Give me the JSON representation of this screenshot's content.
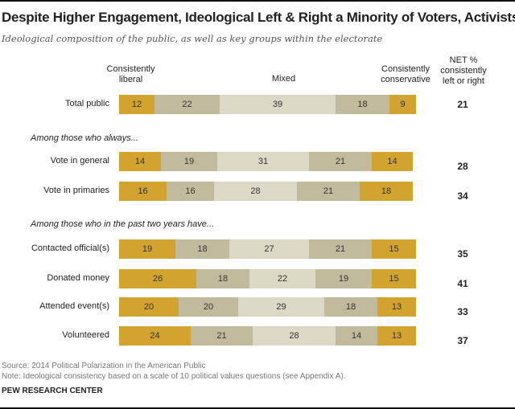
{
  "chart_data": {
    "type": "bar",
    "stacked": true,
    "orientation": "horizontal",
    "title": "Despite Higher Engagement,  Ideological Left & Right a Minority of Voters, Activists",
    "subtitle": "Ideological composition of the public, as well as key groups within the electorate",
    "series_headers": [
      "Consistently liberal",
      "Mixed",
      "Consistently conservative"
    ],
    "net_header": "NET % consistently left or right",
    "sections": [
      "",
      "Among those who always...",
      "Among those who in the past two years have..."
    ],
    "colors": [
      "#D2A42F",
      "#C2BA9C",
      "#DCD8C6",
      "#C2BA9C",
      "#D2A42F"
    ],
    "rows": [
      {
        "label": "Total public",
        "section": 0,
        "values": [
          12,
          22,
          39,
          18,
          9
        ],
        "net": 21
      },
      {
        "label": "Vote in general",
        "section": 1,
        "values": [
          14,
          19,
          31,
          21,
          14
        ],
        "net": 28
      },
      {
        "label": "Vote in primaries",
        "section": 1,
        "values": [
          16,
          16,
          28,
          21,
          18
        ],
        "net": 34
      },
      {
        "label": "Contacted official(s)",
        "section": 2,
        "values": [
          19,
          18,
          27,
          21,
          15
        ],
        "net": 35
      },
      {
        "label": "Donated money",
        "section": 2,
        "values": [
          26,
          18,
          22,
          19,
          15
        ],
        "net": 41
      },
      {
        "label": "Attended event(s)",
        "section": 2,
        "values": [
          20,
          20,
          29,
          18,
          13
        ],
        "net": 33
      },
      {
        "label": "Volunteered",
        "section": 2,
        "values": [
          24,
          21,
          28,
          14,
          13
        ],
        "net": 37
      }
    ],
    "source": "Source: 2014 Political Polarization in the American Public",
    "note": "Note: Ideological consistency based on a scale of 10 political values questions (see Appendix A).",
    "brand": "PEW RESEARCH CENTER"
  }
}
